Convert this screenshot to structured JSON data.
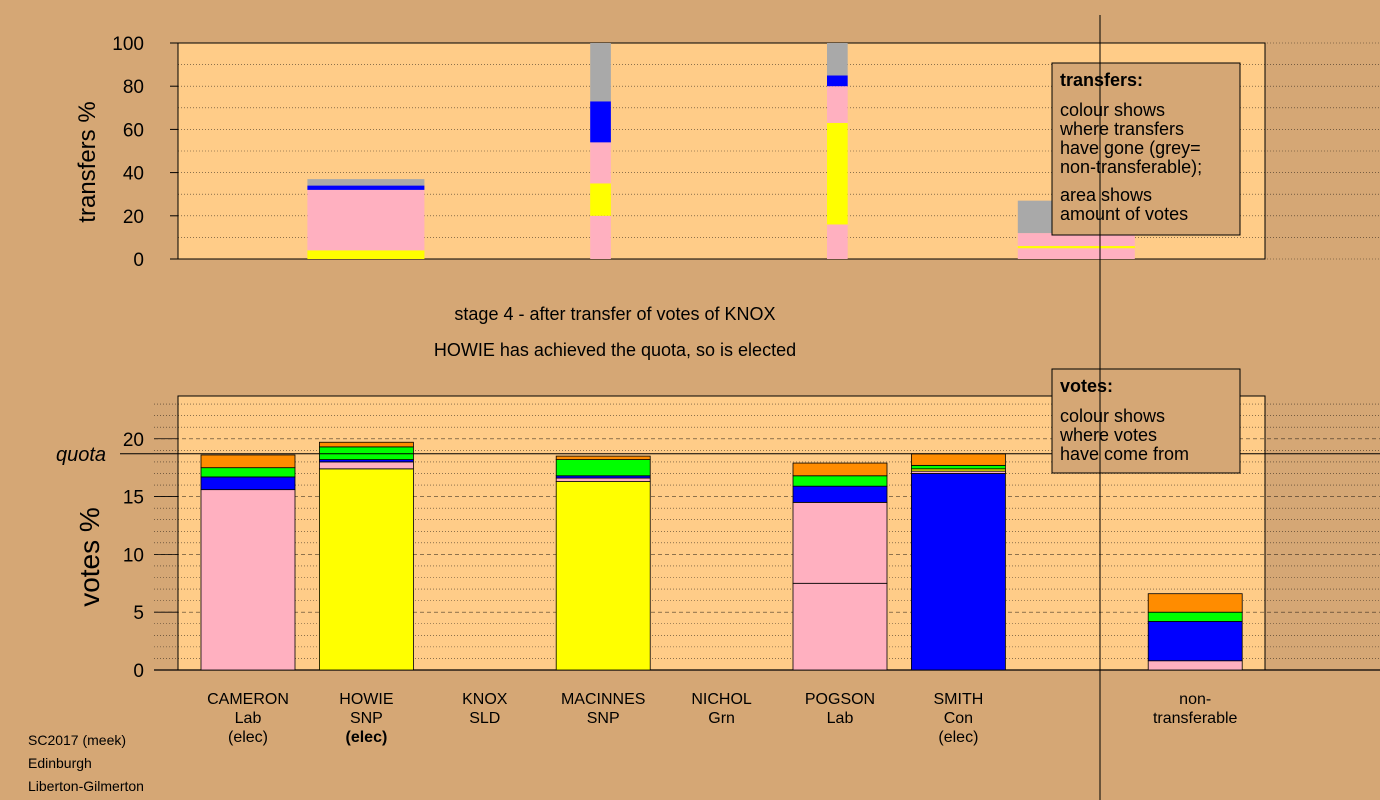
{
  "colors": {
    "background": "#d5a775",
    "plot_bg": "#ffcc88",
    "lab": "#ffb0c0",
    "snp": "#ffff00",
    "con": "#0000ff",
    "grn": "#00ff00",
    "sld": "#ff8c00",
    "nontransferable": "#a9a9a9"
  },
  "stage_title": "stage 4 - after transfer of votes of KNOX",
  "stage_subtitle": "HOWIE has achieved the quota, so is elected",
  "footer": [
    "SC2017 (meek)",
    "Edinburgh",
    "Liberton-Gilmerton"
  ],
  "transfers_legend": {
    "title": "transfers:",
    "lines1": [
      "colour shows",
      "where transfers",
      "have gone (grey=",
      "non-transferable);"
    ],
    "lines2": [
      "area shows",
      "amount of votes"
    ]
  },
  "votes_legend": {
    "title": "votes:",
    "lines": [
      "colour shows",
      "where votes",
      "have come from"
    ]
  },
  "quota_label": "quota",
  "chart_data": [
    {
      "type": "bar",
      "stacked": true,
      "ylabel": "transfers %",
      "ylim": [
        0,
        100
      ],
      "yticks": [
        0,
        20,
        40,
        60,
        80,
        100
      ],
      "grid": "dotted horizontal",
      "bars": [
        {
          "pos": 1,
          "width": 1.0,
          "segments": [
            {
              "to": "lab",
              "from": 0,
              "to_value": 4,
              "color": "snp"
            },
            {
              "from": 4,
              "to_value": 32,
              "color": "lab"
            },
            {
              "from": 32,
              "to_value": 34,
              "color": "con"
            },
            {
              "from": 34,
              "to_value": 37,
              "color": "nontransferable"
            }
          ]
        },
        {
          "pos": 3,
          "width": 0.22,
          "segments": [
            {
              "from": 0,
              "to_value": 20,
              "color": "lab"
            },
            {
              "from": 20,
              "to_value": 35,
              "color": "snp"
            },
            {
              "from": 35,
              "to_value": 54,
              "color": "lab"
            },
            {
              "from": 54,
              "to_value": 73,
              "color": "con"
            },
            {
              "from": 73,
              "to_value": 100,
              "color": "nontransferable"
            }
          ]
        },
        {
          "pos": 5,
          "width": 0.22,
          "segments": [
            {
              "from": 0,
              "to_value": 16,
              "color": "lab"
            },
            {
              "from": 16,
              "to_value": 63,
              "color": "snp"
            },
            {
              "from": 63,
              "to_value": 80,
              "color": "lab"
            },
            {
              "from": 80,
              "to_value": 85,
              "color": "con"
            },
            {
              "from": 85,
              "to_value": 100,
              "color": "nontransferable"
            }
          ]
        },
        {
          "pos": 7,
          "width": 1.0,
          "segments": [
            {
              "from": 0,
              "to_value": 5,
              "color": "lab"
            },
            {
              "from": 5,
              "to_value": 6,
              "color": "snp"
            },
            {
              "from": 6,
              "to_value": 12,
              "color": "lab"
            },
            {
              "from": 12,
              "to_value": 27,
              "color": "nontransferable"
            }
          ]
        }
      ]
    },
    {
      "type": "bar",
      "stacked": true,
      "ylabel": "votes %",
      "ylim": [
        0,
        23.7
      ],
      "yticks": [
        0,
        5,
        10,
        15,
        20
      ],
      "quota": 18.7,
      "grid": "dashed horizontal",
      "categories": [
        {
          "name": "CAMERON",
          "party": "Lab",
          "status": "(elec)",
          "bold_status": false
        },
        {
          "name": "HOWIE",
          "party": "SNP",
          "status": "(elec)",
          "bold_status": true
        },
        {
          "name": "KNOX",
          "party": "SLD",
          "status": "",
          "bold_status": false
        },
        {
          "name": "MACINNES",
          "party": "SNP",
          "status": "",
          "bold_status": false
        },
        {
          "name": "NICHOL",
          "party": "Grn",
          "status": "",
          "bold_status": false
        },
        {
          "name": "POGSON",
          "party": "Lab",
          "status": "",
          "bold_status": false
        },
        {
          "name": "SMITH",
          "party": "Con",
          "status": "(elec)",
          "bold_status": false
        },
        {
          "name": "",
          "party": "",
          "status": "",
          "bold_status": false
        },
        {
          "name": "non-",
          "party": "transferable",
          "status": "",
          "bold_status": false
        }
      ],
      "stacks": [
        [
          {
            "v": 15.6,
            "c": "lab"
          },
          {
            "v": 1.1,
            "c": "con"
          },
          {
            "v": 0.8,
            "c": "grn"
          },
          {
            "v": 1.1,
            "c": "sld"
          }
        ],
        [
          {
            "v": 17.4,
            "c": "snp"
          },
          {
            "v": 0.6,
            "c": "lab"
          },
          {
            "v": 0.2,
            "c": "con"
          },
          {
            "v": 1.1,
            "c": "grn"
          },
          {
            "v": 0.4,
            "c": "sld"
          }
        ],
        [],
        [
          {
            "v": 16.3,
            "c": "snp"
          },
          {
            "v": 0.3,
            "c": "lab"
          },
          {
            "v": 0.2,
            "c": "con"
          },
          {
            "v": 1.4,
            "c": "grn"
          },
          {
            "v": 0.3,
            "c": "sld"
          }
        ],
        [],
        [
          {
            "v": 7.5,
            "c": "lab"
          },
          {
            "v": 7.0,
            "c": "lab"
          },
          {
            "v": 1.4,
            "c": "con"
          },
          {
            "v": 0.9,
            "c": "grn"
          },
          {
            "v": 1.1,
            "c": "sld"
          }
        ],
        [
          {
            "v": 17.0,
            "c": "con"
          },
          {
            "v": 0.2,
            "c": "lab"
          },
          {
            "v": 0.2,
            "c": "snp"
          },
          {
            "v": 0.3,
            "c": "grn"
          },
          {
            "v": 1.0,
            "c": "sld"
          }
        ],
        [],
        [
          {
            "v": 0.8,
            "c": "lab"
          },
          {
            "v": 3.4,
            "c": "con"
          },
          {
            "v": 0.8,
            "c": "grn"
          },
          {
            "v": 1.6,
            "c": "sld"
          }
        ]
      ]
    }
  ]
}
